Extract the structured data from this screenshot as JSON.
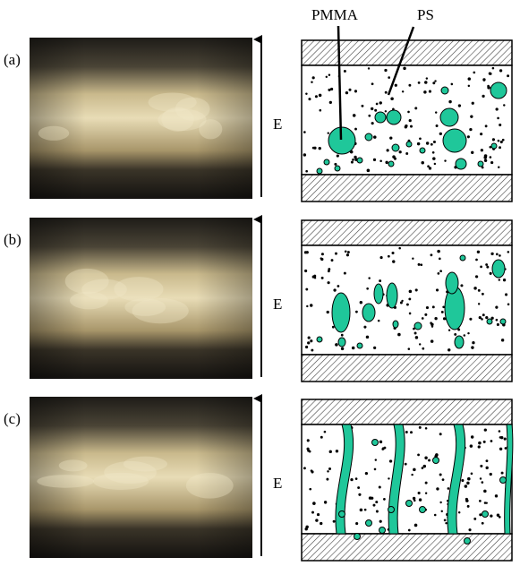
{
  "panels": [
    {
      "label": "(a)",
      "field_label": "E"
    },
    {
      "label": "(b)",
      "field_label": "E"
    },
    {
      "label": "(c)",
      "field_label": "E"
    }
  ],
  "annotations": {
    "pmma": "PMMA",
    "ps": "PS"
  }
}
